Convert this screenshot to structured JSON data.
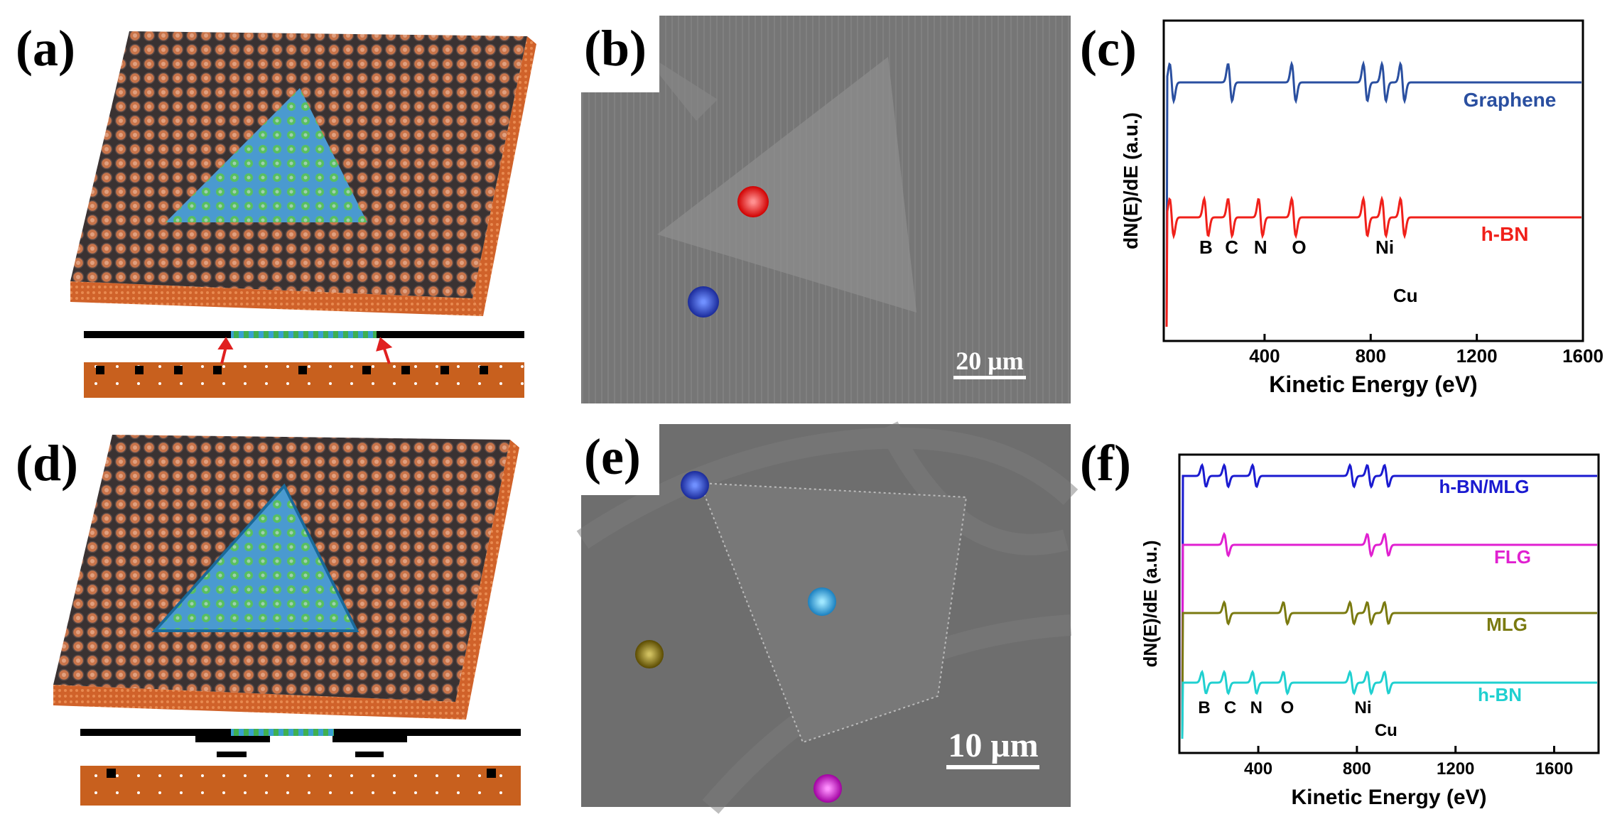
{
  "panels": {
    "a": {
      "label": "(a)"
    },
    "b": {
      "label": "(b)",
      "scale_bar": "20 μm"
    },
    "d": {
      "label": "(d)"
    },
    "e": {
      "label": "(e)",
      "scale_bar": "10 μm"
    }
  },
  "chart_data": [
    {
      "type": "line",
      "label": "(c)",
      "ylabel": "dN(E)/dE (a.u.)",
      "xlabel": "Kinetic Energy (eV)",
      "xlim": [
        20,
        1600
      ],
      "xticks": [
        400,
        800,
        1200,
        1600
      ],
      "series": [
        {
          "name": "Graphene",
          "color": "#2a4fa0",
          "peaks": [
            50,
            270,
            510,
            780,
            850,
            920
          ]
        },
        {
          "name": "h-BN",
          "color": "#f0201a",
          "peaks": [
            50,
            180,
            270,
            385,
            510,
            780,
            850,
            920
          ]
        }
      ],
      "annotations": [
        {
          "label": "B",
          "x": 179
        },
        {
          "label": "C",
          "x": 276
        },
        {
          "label": "N",
          "x": 385
        },
        {
          "label": "O",
          "x": 530
        },
        {
          "label": "Ni",
          "x": 853
        },
        {
          "label": "Cu",
          "x": 931
        }
      ]
    },
    {
      "type": "line",
      "label": "(f)",
      "ylabel": "dN(E)/dE (a.u.)",
      "xlabel": "Kinetic Energy (eV)",
      "xlim": [
        80,
        1780
      ],
      "xticks": [
        400,
        800,
        1200,
        1600
      ],
      "series": [
        {
          "name": "h-BN/MLG",
          "color": "#1a1ad0",
          "peaks": [
            180,
            270,
            385,
            780,
            850,
            920
          ]
        },
        {
          "name": "FLG",
          "color": "#e020d0",
          "peaks": [
            270,
            850,
            920
          ]
        },
        {
          "name": "MLG",
          "color": "#7a7a10",
          "peaks": [
            270,
            510,
            780,
            850,
            920
          ]
        },
        {
          "name": "h-BN",
          "color": "#20d0d0",
          "peaks": [
            180,
            270,
            385,
            510,
            780,
            850,
            920
          ]
        }
      ],
      "annotations": [
        {
          "label": "B",
          "x": 181
        },
        {
          "label": "C",
          "x": 286
        },
        {
          "label": "N",
          "x": 392
        },
        {
          "label": "O",
          "x": 518
        },
        {
          "label": "Ni",
          "x": 825
        },
        {
          "label": "Cu",
          "x": 918
        }
      ]
    }
  ]
}
